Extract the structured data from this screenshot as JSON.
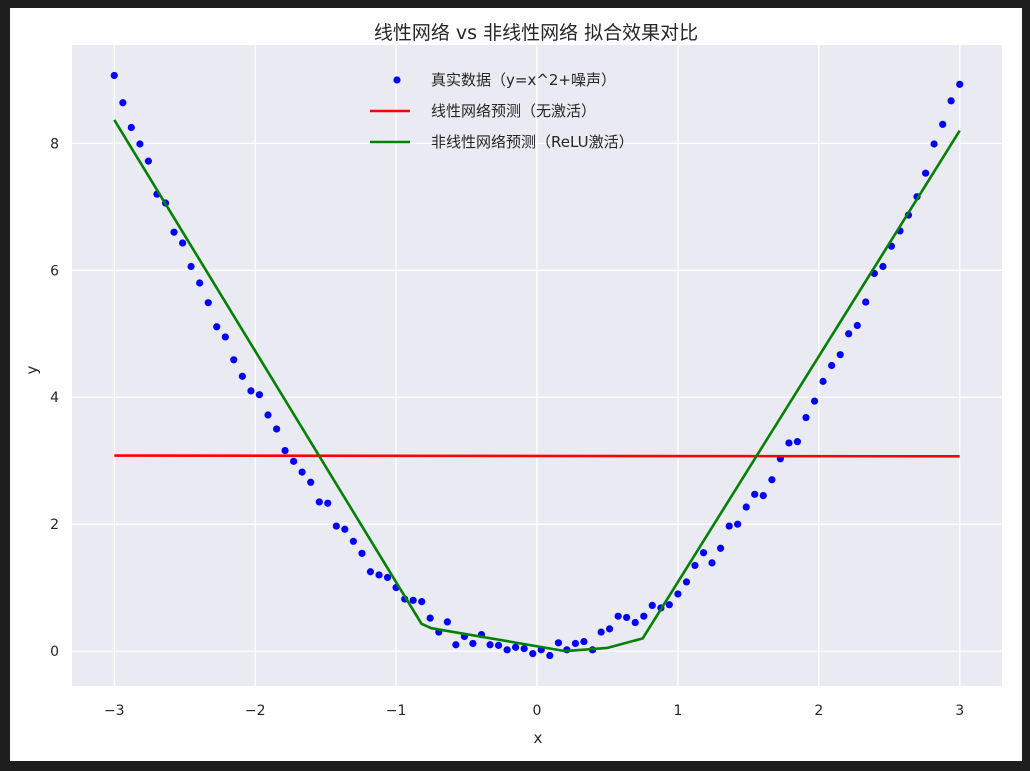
{
  "chart_data": {
    "type": "line",
    "title": "线性网络 vs 非线性网络 拟合效果对比",
    "xlabel": "x",
    "ylabel": "y",
    "xlim": [
      -3.3,
      3.3
    ],
    "ylim": [
      -0.55,
      9.55
    ],
    "xticks": [
      -3,
      -2,
      -1,
      0,
      1,
      2,
      3
    ],
    "yticks": [
      0,
      2,
      4,
      6,
      8
    ],
    "grid": true,
    "legend_position": "top-center",
    "background_color": "#eaeaf2",
    "series": [
      {
        "name": "真实数据（y=x^2+噪声）",
        "kind": "scatter",
        "color": "#0000ff",
        "x": [
          -3.0,
          -2.939,
          -2.879,
          -2.818,
          -2.758,
          -2.697,
          -2.636,
          -2.576,
          -2.515,
          -2.455,
          -2.394,
          -2.333,
          -2.273,
          -2.212,
          -2.152,
          -2.091,
          -2.03,
          -1.97,
          -1.909,
          -1.848,
          -1.788,
          -1.727,
          -1.667,
          -1.606,
          -1.545,
          -1.485,
          -1.424,
          -1.364,
          -1.303,
          -1.242,
          -1.182,
          -1.121,
          -1.061,
          -1.0,
          -0.939,
          -0.879,
          -0.818,
          -0.758,
          -0.697,
          -0.636,
          -0.576,
          -0.515,
          -0.455,
          -0.394,
          -0.333,
          -0.273,
          -0.212,
          -0.152,
          -0.091,
          -0.03,
          0.03,
          0.091,
          0.152,
          0.212,
          0.273,
          0.333,
          0.394,
          0.455,
          0.515,
          0.576,
          0.636,
          0.697,
          0.758,
          0.818,
          0.879,
          0.939,
          1.0,
          1.061,
          1.121,
          1.182,
          1.242,
          1.303,
          1.364,
          1.424,
          1.485,
          1.545,
          1.606,
          1.667,
          1.727,
          1.788,
          1.848,
          1.909,
          1.97,
          2.03,
          2.091,
          2.152,
          2.212,
          2.273,
          2.333,
          2.394,
          2.455,
          2.515,
          2.576,
          2.636,
          2.697,
          2.758,
          2.818,
          2.879,
          2.939,
          3.0
        ],
        "y": [
          9.07,
          8.64,
          8.25,
          7.99,
          7.72,
          7.2,
          7.06,
          6.6,
          6.43,
          6.06,
          5.8,
          5.49,
          5.11,
          4.95,
          4.59,
          4.33,
          4.1,
          4.04,
          3.72,
          3.5,
          3.16,
          2.99,
          2.82,
          2.66,
          2.35,
          2.33,
          1.97,
          1.92,
          1.73,
          1.54,
          1.25,
          1.2,
          1.16,
          1.0,
          0.82,
          0.8,
          0.78,
          0.52,
          0.3,
          0.46,
          0.1,
          0.23,
          0.12,
          0.26,
          0.1,
          0.09,
          0.02,
          0.06,
          0.04,
          -0.04,
          0.02,
          -0.07,
          0.13,
          0.02,
          0.12,
          0.15,
          0.02,
          0.3,
          0.35,
          0.55,
          0.53,
          0.45,
          0.55,
          0.72,
          0.68,
          0.73,
          0.9,
          1.09,
          1.35,
          1.55,
          1.39,
          1.62,
          1.97,
          2.0,
          2.27,
          2.47,
          2.45,
          2.7,
          3.03,
          3.28,
          3.3,
          3.68,
          3.94,
          4.25,
          4.5,
          4.67,
          5.0,
          5.13,
          5.5,
          5.95,
          6.06,
          6.38,
          6.62,
          6.87,
          7.16,
          7.53,
          7.99,
          8.3,
          8.67,
          8.93
        ]
      },
      {
        "name": "线性网络预测（无激活）",
        "kind": "line",
        "color": "#ff0000",
        "x": [
          -3.0,
          3.0
        ],
        "y": [
          3.08,
          3.07
        ]
      },
      {
        "name": "非线性网络预测（ReLU激活）",
        "kind": "line",
        "color": "#008000",
        "x": [
          -3.0,
          -0.82,
          -0.75,
          0.2,
          0.5,
          0.75,
          3.0
        ],
        "y": [
          8.37,
          0.43,
          0.36,
          0.0,
          0.05,
          0.2,
          8.2
        ]
      }
    ]
  }
}
